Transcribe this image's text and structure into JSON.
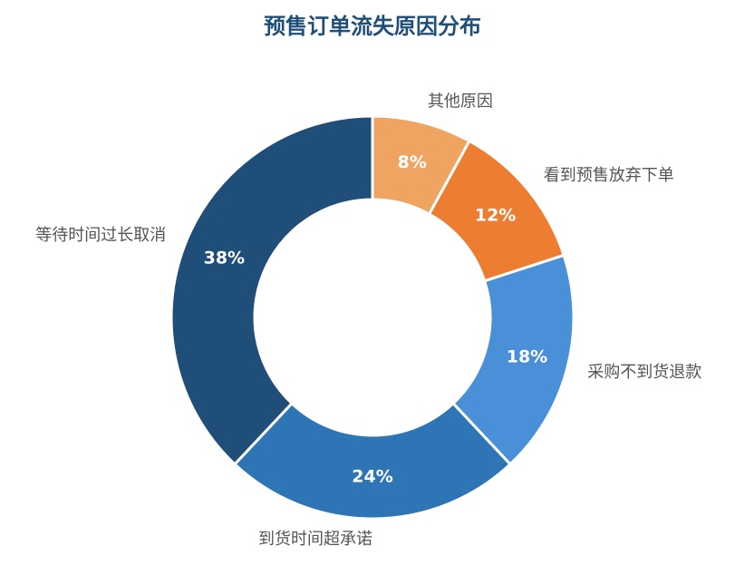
{
  "chart_data": {
    "type": "donut",
    "title": "预售订单流失原因分布",
    "categories": [
      "其他原因",
      "看到预售放弃下单",
      "采购不到货退款",
      "到货时间超承诺",
      "等待时间过长取消"
    ],
    "values": [
      8,
      12,
      18,
      24,
      38
    ],
    "value_labels": [
      "8%",
      "12%",
      "18%",
      "24%",
      "38%"
    ],
    "colors": [
      "#f0a462",
      "#ed7d31",
      "#4a90d9",
      "#2e75b6",
      "#1f4e79"
    ]
  }
}
